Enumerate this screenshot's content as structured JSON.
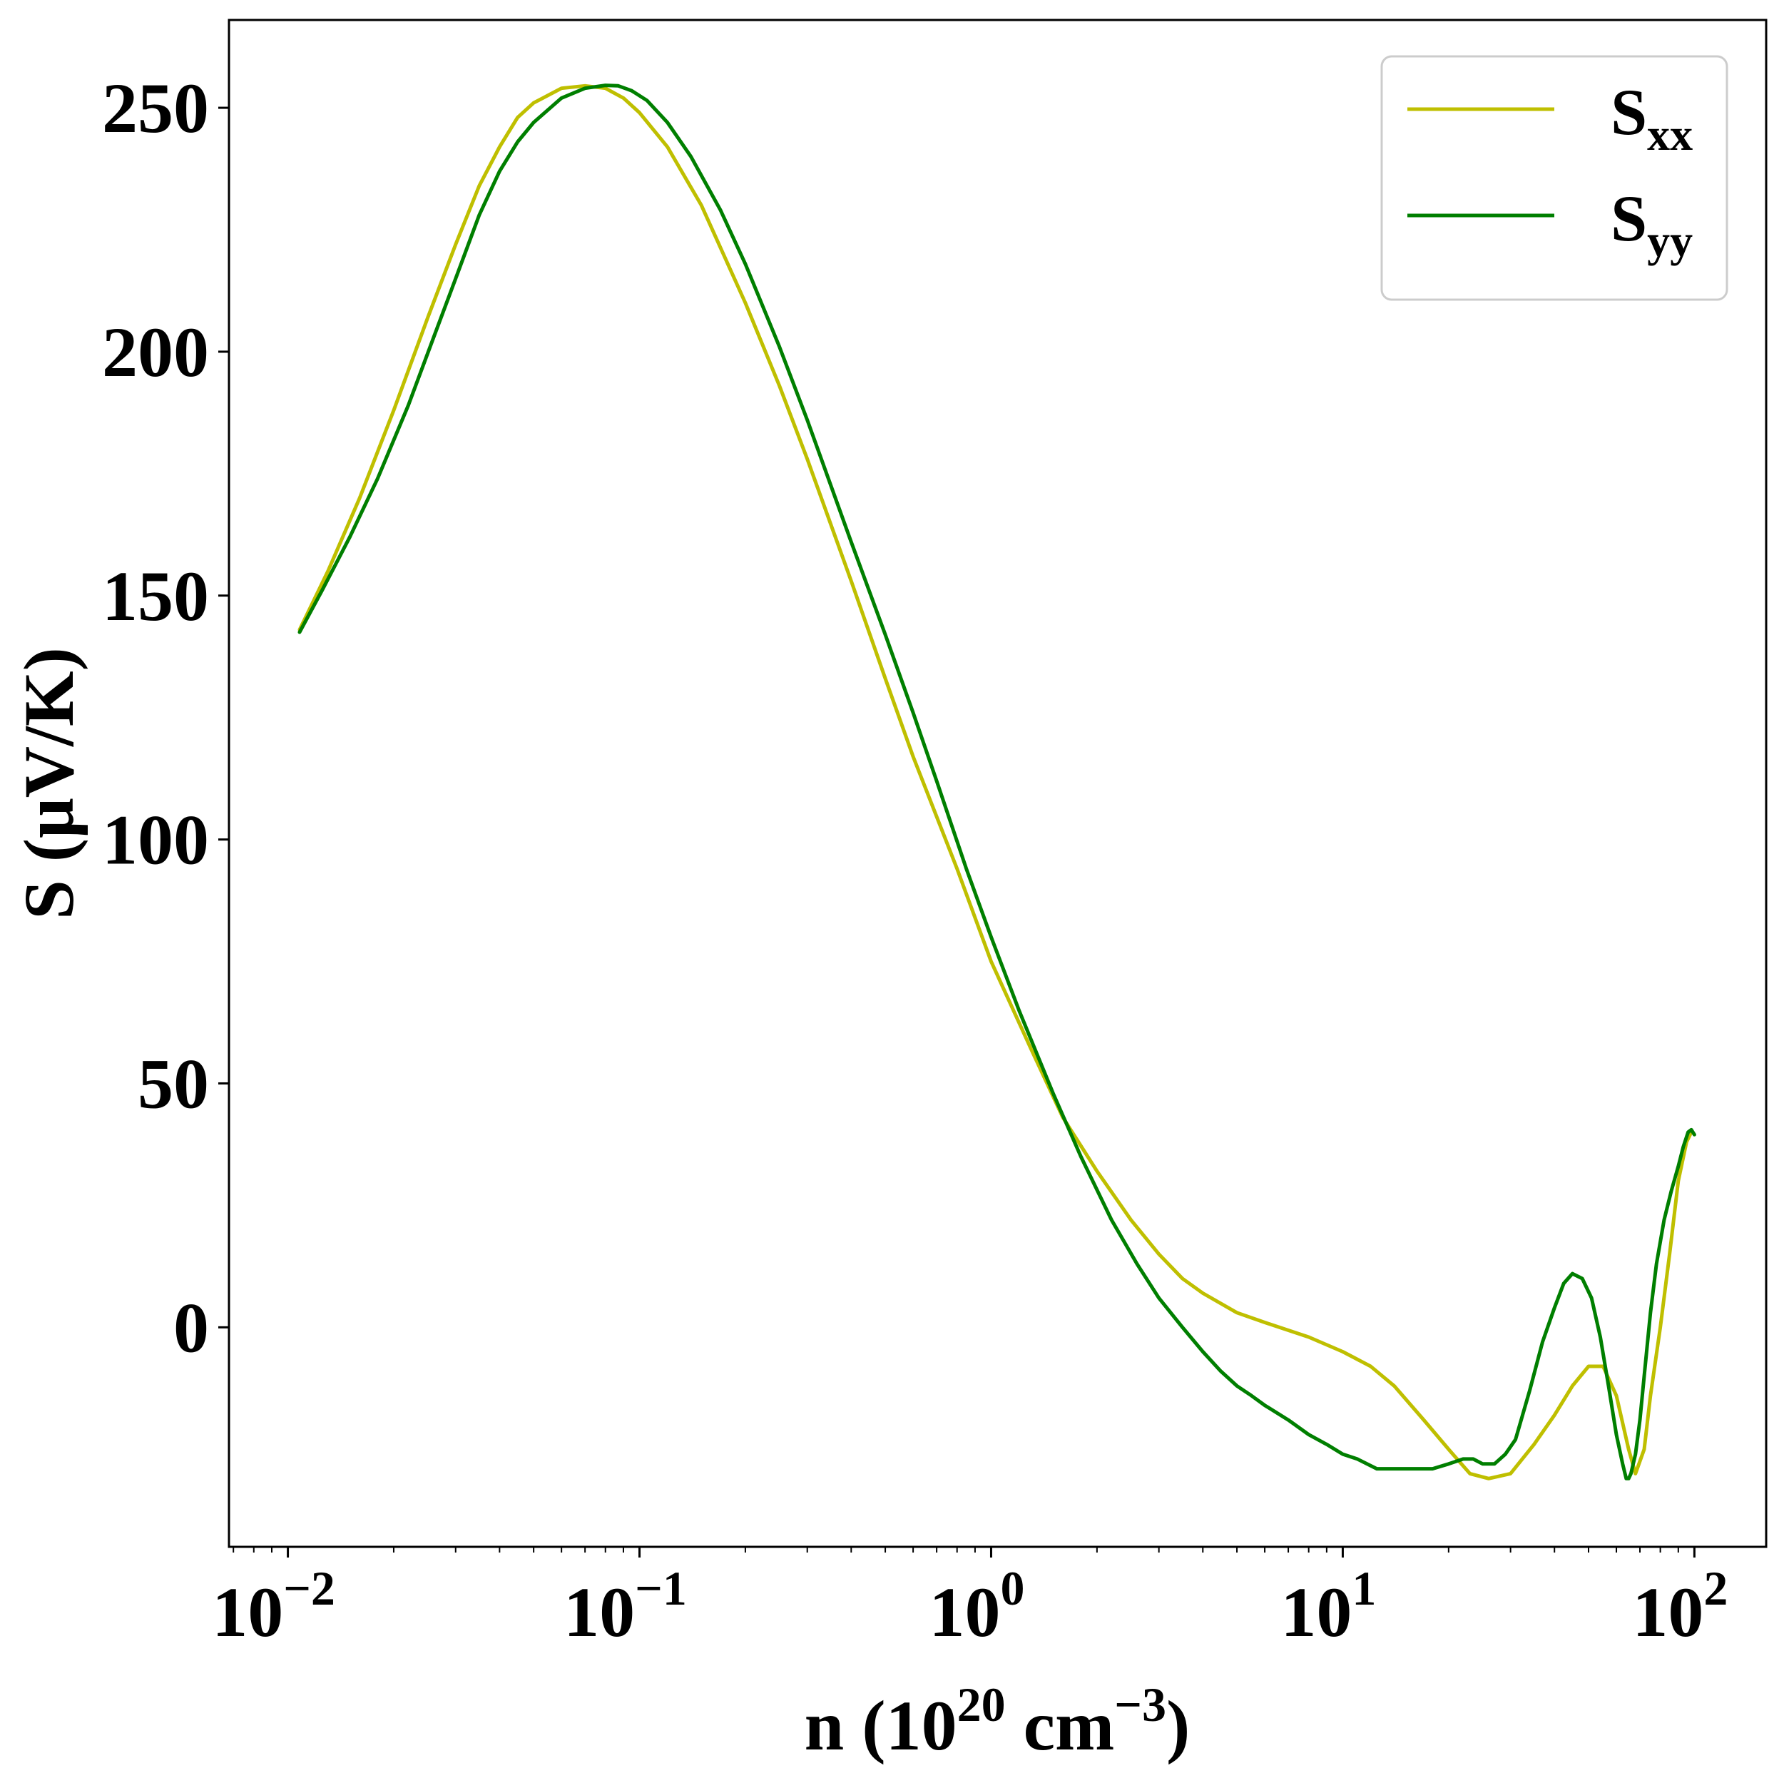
{
  "chart_data": {
    "type": "line",
    "title": "",
    "xlabel": "n (10^20 cm^-3)",
    "xlabel_parts": {
      "pre": "n (10",
      "sup1": "20",
      "mid": " cm",
      "sup2": "−3",
      "post": ")"
    },
    "ylabel": "S (μV/K)",
    "xscale": "log",
    "xlim": [
      0.0068,
      160
    ],
    "ylim": [
      -45,
      268
    ],
    "grid": false,
    "legend_position": "top-right",
    "x_ticks": [
      {
        "value": 0.01,
        "base": "10",
        "exp": "−2"
      },
      {
        "value": 0.1,
        "base": "10",
        "exp": "−1"
      },
      {
        "value": 1,
        "base": "10",
        "exp": "0"
      },
      {
        "value": 10,
        "base": "10",
        "exp": "1"
      },
      {
        "value": 100,
        "base": "10",
        "exp": "2"
      }
    ],
    "y_ticks": [
      {
        "value": 0,
        "label": "0"
      },
      {
        "value": 50,
        "label": "50"
      },
      {
        "value": 100,
        "label": "100"
      },
      {
        "value": 150,
        "label": "150"
      },
      {
        "value": 200,
        "label": "200"
      },
      {
        "value": 250,
        "label": "250"
      }
    ],
    "series": [
      {
        "name": "S_xx",
        "legend_main": "S",
        "legend_sub": "xx",
        "color": "#bfbf00",
        "x": [
          0.0108,
          0.013,
          0.016,
          0.02,
          0.025,
          0.03,
          0.035,
          0.04,
          0.045,
          0.05,
          0.06,
          0.07,
          0.08,
          0.09,
          0.1,
          0.12,
          0.15,
          0.2,
          0.25,
          0.3,
          0.4,
          0.5,
          0.6,
          0.8,
          1.0,
          1.3,
          1.6,
          2.0,
          2.5,
          3.0,
          3.5,
          4.0,
          5.0,
          6.0,
          8.0,
          10.0,
          12.0,
          14.0,
          17.0,
          20.0,
          23.0,
          26.0,
          30.0,
          35.0,
          40.0,
          45.0,
          50.0,
          55.0,
          60.0,
          65.0,
          68.0,
          72.0,
          75.0,
          80.0,
          85.0,
          90.0,
          95.0,
          98.0
        ],
        "y": [
          143,
          155,
          170,
          188,
          207,
          222,
          234,
          242,
          248,
          251,
          254,
          254.5,
          254,
          252,
          249,
          242,
          230,
          210,
          193,
          178,
          153,
          133,
          117,
          94,
          75,
          57,
          43,
          32,
          22,
          15,
          10,
          7,
          3,
          1,
          -2,
          -5,
          -8,
          -12,
          -19,
          -25,
          -30,
          -31,
          -30,
          -24,
          -18,
          -12,
          -8,
          -8,
          -14,
          -25,
          -30,
          -25,
          -14,
          0,
          15,
          30,
          38,
          40
        ]
      },
      {
        "name": "S_yy",
        "legend_main": "S",
        "legend_sub": "yy",
        "color": "#007f00",
        "x": [
          0.0108,
          0.0125,
          0.015,
          0.018,
          0.022,
          0.026,
          0.03,
          0.035,
          0.04,
          0.045,
          0.05,
          0.06,
          0.07,
          0.08,
          0.087,
          0.095,
          0.105,
          0.12,
          0.14,
          0.17,
          0.2,
          0.25,
          0.3,
          0.4,
          0.5,
          0.6,
          0.7,
          0.85,
          1.0,
          1.2,
          1.5,
          1.8,
          2.2,
          2.6,
          3.0,
          3.5,
          4.0,
          4.5,
          5.0,
          5.5,
          6.0,
          7.0,
          8.0,
          9.0,
          10.0,
          11.0,
          12.5,
          14.0,
          16.0,
          18.0,
          20.0,
          22.0,
          23.5,
          25.0,
          27.0,
          29.0,
          31.0,
          34.0,
          37.0,
          40.0,
          42.5,
          45.0,
          48.0,
          51.0,
          54.0,
          57.0,
          60.0,
          62.5,
          64.0,
          65.0,
          66.0,
          68.0,
          70.0,
          72.0,
          75.0,
          78.0,
          82.0,
          86.0,
          90.0,
          93.0,
          96.0,
          98.0,
          100.0
        ],
        "y": [
          142.5,
          151,
          162,
          174,
          189,
          203,
          215,
          228,
          237,
          243,
          247,
          252,
          254,
          254.6,
          254.5,
          253.5,
          251.5,
          247,
          240,
          229,
          218,
          201,
          186,
          161,
          142,
          126,
          112,
          94,
          80,
          65,
          48,
          35,
          22,
          13,
          6,
          0,
          -5,
          -9,
          -12,
          -14,
          -16,
          -19,
          -22,
          -24,
          -26,
          -27,
          -29,
          -29,
          -29,
          -29,
          -28,
          -27,
          -27,
          -28,
          -28,
          -26,
          -23,
          -13,
          -3,
          4,
          9,
          11,
          10,
          6,
          -2,
          -12,
          -22,
          -28,
          -31,
          -31,
          -30,
          -26,
          -19,
          -10,
          3,
          13,
          22,
          28,
          33,
          37,
          40,
          40.5,
          39.5
        ]
      }
    ]
  }
}
